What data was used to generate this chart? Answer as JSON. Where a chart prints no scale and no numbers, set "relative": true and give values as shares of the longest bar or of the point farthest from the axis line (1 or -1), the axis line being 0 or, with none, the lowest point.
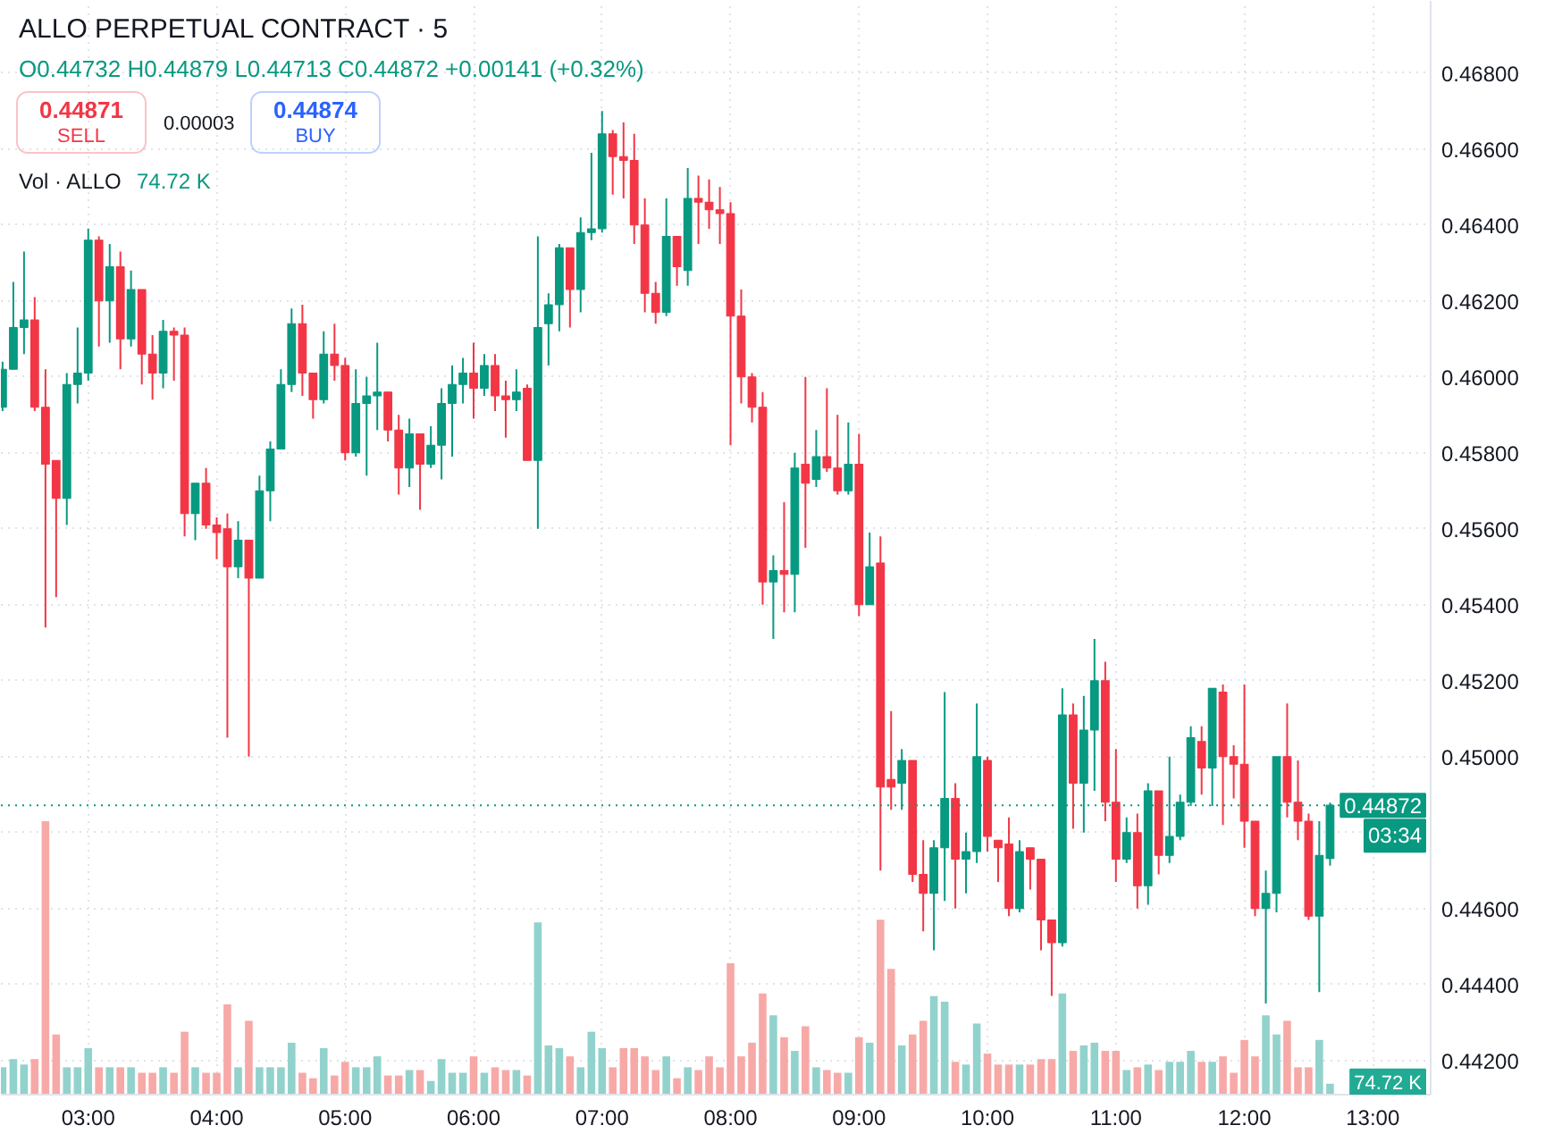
{
  "chart_data": [
    {
      "type": "candlestick",
      "title": "ALLO PERPETUAL CONTRACT · 5",
      "x": [
        2.333,
        2.417,
        2.5,
        2.583,
        2.667,
        2.75,
        2.833,
        2.917,
        3,
        3.083,
        3.167,
        3.25,
        3.333,
        3.417,
        3.5,
        3.583,
        3.667,
        3.75,
        3.833,
        3.917,
        4,
        4.083,
        4.167,
        4.25,
        4.333,
        4.417,
        4.5,
        4.583,
        4.667,
        4.75,
        4.833,
        4.917,
        5,
        5.083,
        5.167,
        5.25,
        5.333,
        5.417,
        5.5,
        5.583,
        5.667,
        5.75,
        5.833,
        5.917,
        6,
        6.083,
        6.167,
        6.25,
        6.333,
        6.417,
        6.5,
        6.583,
        6.667,
        6.75,
        6.833,
        6.917,
        7,
        7.083,
        7.167,
        7.25,
        7.333,
        7.417,
        7.5,
        7.583,
        7.667,
        7.75,
        7.833,
        7.917,
        8,
        8.083,
        8.167,
        8.25,
        8.333,
        8.417,
        8.5,
        8.583,
        8.667,
        8.75,
        8.833,
        8.917,
        9,
        9.083,
        9.167,
        9.25,
        9.333,
        9.417,
        9.5,
        9.583,
        9.667,
        9.75,
        9.833,
        9.917,
        10,
        10.083,
        10.167,
        10.25,
        10.333,
        10.417,
        10.5,
        10.583,
        10.667,
        10.75,
        10.833,
        10.917,
        11,
        11.083,
        11.167,
        11.25,
        11.333,
        11.417,
        11.5,
        11.583,
        11.667,
        11.75,
        11.833,
        11.917,
        12,
        12.083,
        12.167,
        12.25,
        12.333,
        12.417,
        12.5,
        12.583,
        12.667
      ],
      "ohlc": [
        [
          0.4592,
          0.4604,
          0.4591,
          0.4602
        ],
        [
          0.4602,
          0.4625,
          0.4602,
          0.4613
        ],
        [
          0.4613,
          0.4633,
          0.4606,
          0.4615
        ],
        [
          0.4615,
          0.4621,
          0.4591,
          0.4592
        ],
        [
          0.4592,
          0.4602,
          0.4534,
          0.4577
        ],
        [
          0.4578,
          0.4578,
          0.4542,
          0.4568
        ],
        [
          0.4568,
          0.4601,
          0.4561,
          0.4598
        ],
        [
          0.4598,
          0.4613,
          0.4593,
          0.4601
        ],
        [
          0.4601,
          0.4639,
          0.4599,
          0.4636
        ],
        [
          0.4636,
          0.4637,
          0.4608,
          0.462
        ],
        [
          0.462,
          0.4635,
          0.4609,
          0.4629
        ],
        [
          0.4629,
          0.4633,
          0.4602,
          0.461
        ],
        [
          0.461,
          0.4628,
          0.4608,
          0.4623
        ],
        [
          0.4623,
          0.4623,
          0.4598,
          0.4606
        ],
        [
          0.4606,
          0.4611,
          0.4594,
          0.4601
        ],
        [
          0.4601,
          0.4615,
          0.4597,
          0.4612
        ],
        [
          0.4612,
          0.4613,
          0.4599,
          0.4611
        ],
        [
          0.4611,
          0.4613,
          0.4558,
          0.4564
        ],
        [
          0.4564,
          0.4572,
          0.4557,
          0.4572
        ],
        [
          0.4572,
          0.4576,
          0.456,
          0.4561
        ],
        [
          0.4561,
          0.4563,
          0.4552,
          0.4559
        ],
        [
          0.456,
          0.4564,
          0.4505,
          0.455
        ],
        [
          0.455,
          0.4562,
          0.4547,
          0.4557
        ],
        [
          0.4557,
          0.4557,
          0.45,
          0.4547
        ],
        [
          0.4547,
          0.4574,
          0.4547,
          0.457
        ],
        [
          0.457,
          0.4583,
          0.4562,
          0.4581
        ],
        [
          0.4581,
          0.4602,
          0.4581,
          0.4598
        ],
        [
          0.4598,
          0.4618,
          0.4596,
          0.4614
        ],
        [
          0.4614,
          0.4619,
          0.4595,
          0.4601
        ],
        [
          0.4601,
          0.4601,
          0.4589,
          0.4594
        ],
        [
          0.4594,
          0.4612,
          0.4593,
          0.4606
        ],
        [
          0.4606,
          0.4614,
          0.4599,
          0.4603
        ],
        [
          0.4603,
          0.4605,
          0.4578,
          0.458
        ],
        [
          0.458,
          0.4602,
          0.4579,
          0.4593
        ],
        [
          0.4593,
          0.46,
          0.4574,
          0.4595
        ],
        [
          0.4595,
          0.4609,
          0.4586,
          0.4596
        ],
        [
          0.4596,
          0.4596,
          0.4583,
          0.4586
        ],
        [
          0.4586,
          0.459,
          0.4569,
          0.4576
        ],
        [
          0.4576,
          0.4589,
          0.4571,
          0.4585
        ],
        [
          0.4585,
          0.4585,
          0.4565,
          0.4577
        ],
        [
          0.4577,
          0.4587,
          0.4576,
          0.4582
        ],
        [
          0.4582,
          0.4597,
          0.4573,
          0.4593
        ],
        [
          0.4593,
          0.4603,
          0.4579,
          0.4598
        ],
        [
          0.4598,
          0.4605,
          0.4593,
          0.4601
        ],
        [
          0.4601,
          0.4609,
          0.4589,
          0.4597
        ],
        [
          0.4597,
          0.4606,
          0.4595,
          0.4603
        ],
        [
          0.4603,
          0.4606,
          0.4591,
          0.4595
        ],
        [
          0.4595,
          0.4599,
          0.4584,
          0.4594
        ],
        [
          0.4594,
          0.4602,
          0.4591,
          0.4596
        ],
        [
          0.4597,
          0.4598,
          0.4578,
          0.4578
        ],
        [
          0.4578,
          0.4637,
          0.456,
          0.4613
        ],
        [
          0.4614,
          0.4622,
          0.4603,
          0.4619
        ],
        [
          0.4619,
          0.4635,
          0.4612,
          0.4634
        ],
        [
          0.4634,
          0.4634,
          0.4613,
          0.4623
        ],
        [
          0.4623,
          0.4642,
          0.4617,
          0.4638
        ],
        [
          0.4638,
          0.4659,
          0.4636,
          0.4639
        ],
        [
          0.4639,
          0.467,
          0.4638,
          0.4664
        ],
        [
          0.4664,
          0.4665,
          0.4648,
          0.4658
        ],
        [
          0.4658,
          0.4667,
          0.4647,
          0.4657
        ],
        [
          0.4657,
          0.4664,
          0.4635,
          0.464
        ],
        [
          0.464,
          0.4647,
          0.4617,
          0.4622
        ],
        [
          0.4622,
          0.4625,
          0.4614,
          0.4617
        ],
        [
          0.4617,
          0.4647,
          0.4616,
          0.4637
        ],
        [
          0.4637,
          0.4637,
          0.4624,
          0.4629
        ],
        [
          0.4628,
          0.4655,
          0.4624,
          0.4647
        ],
        [
          0.4647,
          0.4653,
          0.4635,
          0.4646
        ],
        [
          0.4646,
          0.4652,
          0.4639,
          0.4644
        ],
        [
          0.4644,
          0.465,
          0.4635,
          0.4643
        ],
        [
          0.4643,
          0.4646,
          0.4582,
          0.4616
        ],
        [
          0.4616,
          0.4623,
          0.4593,
          0.46
        ],
        [
          0.46,
          0.4601,
          0.4588,
          0.4592
        ],
        [
          0.4592,
          0.4596,
          0.454,
          0.4546
        ],
        [
          0.4546,
          0.4553,
          0.4531,
          0.4549
        ],
        [
          0.4549,
          0.4567,
          0.4538,
          0.4548
        ],
        [
          0.4548,
          0.458,
          0.4538,
          0.4576
        ],
        [
          0.4577,
          0.46,
          0.4555,
          0.4572
        ],
        [
          0.4573,
          0.4586,
          0.4571,
          0.4579
        ],
        [
          0.4579,
          0.4597,
          0.4575,
          0.4576
        ],
        [
          0.4576,
          0.459,
          0.4569,
          0.457
        ],
        [
          0.457,
          0.4588,
          0.4569,
          0.4577
        ],
        [
          0.4577,
          0.4585,
          0.4537,
          0.454
        ],
        [
          0.454,
          0.4559,
          0.454,
          0.455
        ],
        [
          0.4551,
          0.4558,
          0.447,
          0.4492
        ],
        [
          0.4494,
          0.4512,
          0.4486,
          0.4492
        ],
        [
          0.4493,
          0.4502,
          0.4486,
          0.4499
        ],
        [
          0.4499,
          0.4499,
          0.4467,
          0.4469
        ],
        [
          0.4469,
          0.4478,
          0.4454,
          0.4464
        ],
        [
          0.4464,
          0.4478,
          0.4449,
          0.4476
        ],
        [
          0.4476,
          0.4517,
          0.4462,
          0.4489
        ],
        [
          0.4489,
          0.4493,
          0.446,
          0.4473
        ],
        [
          0.4473,
          0.448,
          0.4464,
          0.4475
        ],
        [
          0.4475,
          0.4514,
          0.4472,
          0.45
        ],
        [
          0.4499,
          0.45,
          0.4475,
          0.4479
        ],
        [
          0.4478,
          0.4478,
          0.4467,
          0.4476
        ],
        [
          0.4477,
          0.4484,
          0.4458,
          0.446
        ],
        [
          0.446,
          0.4478,
          0.4459,
          0.4475
        ],
        [
          0.4476,
          0.4476,
          0.4465,
          0.4473
        ],
        [
          0.4473,
          0.4473,
          0.4449,
          0.4457
        ],
        [
          0.4457,
          0.4457,
          0.4437,
          0.4451
        ],
        [
          0.4451,
          0.4518,
          0.445,
          0.4511
        ],
        [
          0.4511,
          0.4514,
          0.4481,
          0.4493
        ],
        [
          0.4493,
          0.4516,
          0.448,
          0.4507
        ],
        [
          0.4507,
          0.4531,
          0.4491,
          0.452
        ],
        [
          0.452,
          0.4525,
          0.4483,
          0.4488
        ],
        [
          0.4488,
          0.4502,
          0.4467,
          0.4473
        ],
        [
          0.4473,
          0.4484,
          0.4472,
          0.448
        ],
        [
          0.448,
          0.4485,
          0.446,
          0.4466
        ],
        [
          0.4466,
          0.4493,
          0.4461,
          0.4491
        ],
        [
          0.4491,
          0.4491,
          0.4469,
          0.4474
        ],
        [
          0.4474,
          0.45,
          0.4472,
          0.4479
        ],
        [
          0.4479,
          0.449,
          0.4478,
          0.4488
        ],
        [
          0.4488,
          0.4508,
          0.4487,
          0.4505
        ],
        [
          0.4504,
          0.4508,
          0.449,
          0.4497
        ],
        [
          0.4497,
          0.4518,
          0.4487,
          0.4518
        ],
        [
          0.4517,
          0.4519,
          0.4482,
          0.45
        ],
        [
          0.45,
          0.4503,
          0.4489,
          0.4498
        ],
        [
          0.4498,
          0.4519,
          0.4476,
          0.4483
        ],
        [
          0.4483,
          0.4483,
          0.4458,
          0.446
        ],
        [
          0.446,
          0.447,
          0.4435,
          0.4464
        ],
        [
          0.4464,
          0.45,
          0.4459,
          0.45
        ],
        [
          0.45,
          0.4514,
          0.4484,
          0.4488
        ],
        [
          0.4488,
          0.4499,
          0.4478,
          0.4483
        ],
        [
          0.4483,
          0.4485,
          0.4457,
          0.4458
        ],
        [
          0.4458,
          0.4483,
          0.4438,
          0.4474
        ],
        [
          0.44732,
          0.44879,
          0.44713,
          0.44872
        ]
      ],
      "colors": [
        "#089981",
        "#089981",
        "#089981",
        "#f23645",
        "#f23645",
        "#f23645",
        "#089981",
        "#089981",
        "#089981",
        "#f23645",
        "#089981",
        "#f23645",
        "#089981",
        "#f23645",
        "#f23645",
        "#089981",
        "#f23645",
        "#f23645",
        "#089981",
        "#f23645",
        "#f23645",
        "#f23645",
        "#089981",
        "#f23645",
        "#089981",
        "#089981",
        "#089981",
        "#089981",
        "#f23645",
        "#f23645",
        "#089981",
        "#f23645",
        "#f23645",
        "#089981",
        "#089981",
        "#089981",
        "#f23645",
        "#f23645",
        "#089981",
        "#f23645",
        "#089981",
        "#089981",
        "#089981",
        "#089981",
        "#f23645",
        "#089981",
        "#f23645",
        "#f23645",
        "#089981",
        "#f23645",
        "#089981",
        "#089981",
        "#089981",
        "#f23645",
        "#089981",
        "#089981",
        "#089981",
        "#f23645",
        "#f23645",
        "#f23645",
        "#f23645",
        "#f23645",
        "#089981",
        "#f23645",
        "#089981",
        "#f23645",
        "#f23645",
        "#f23645",
        "#f23645",
        "#f23645",
        "#f23645",
        "#f23645",
        "#089981",
        "#f23645",
        "#089981",
        "#f23645",
        "#089981",
        "#f23645",
        "#f23645",
        "#089981",
        "#f23645",
        "#089981",
        "#f23645",
        "#f23645",
        "#089981",
        "#f23645",
        "#f23645",
        "#089981",
        "#089981",
        "#f23645",
        "#089981",
        "#089981",
        "#f23645",
        "#f23645",
        "#f23645",
        "#089981",
        "#f23645",
        "#f23645",
        "#f23645",
        "#089981",
        "#f23645",
        "#089981",
        "#089981",
        "#f23645",
        "#f23645",
        "#089981",
        "#f23645",
        "#089981",
        "#f23645",
        "#089981",
        "#089981",
        "#089981",
        "#f23645",
        "#089981",
        "#f23645",
        "#f23645",
        "#f23645",
        "#f23645",
        "#089981",
        "#089981",
        "#f23645",
        "#f23645",
        "#f23645",
        "#089981",
        "#089981"
      ],
      "xlim": [
        2.32,
        13.45
      ],
      "xticks": [
        {
          "value": 3,
          "label": "03:00"
        },
        {
          "value": 4,
          "label": "04:00"
        },
        {
          "value": 5,
          "label": "05:00"
        },
        {
          "value": 6,
          "label": "06:00"
        },
        {
          "value": 7,
          "label": "07:00"
        },
        {
          "value": 8,
          "label": "08:00"
        },
        {
          "value": 9,
          "label": "09:00"
        },
        {
          "value": 10,
          "label": "10:00"
        },
        {
          "value": 11,
          "label": "11:00"
        },
        {
          "value": 12,
          "label": "12:00"
        },
        {
          "value": 13,
          "label": "13:00"
        }
      ],
      "ylim": [
        0.4411,
        0.4699
      ],
      "yticks": [
        {
          "value": 0.442,
          "label": "0.44200"
        },
        {
          "value": 0.444,
          "label": "0.44400"
        },
        {
          "value": 0.446,
          "label": "0.44600"
        },
        {
          "value": 0.448,
          "label": null
        },
        {
          "value": 0.45,
          "label": "0.45000"
        },
        {
          "value": 0.452,
          "label": "0.45200"
        },
        {
          "value": 0.454,
          "label": "0.45400"
        },
        {
          "value": 0.456,
          "label": "0.45600"
        },
        {
          "value": 0.458,
          "label": "0.45800"
        },
        {
          "value": 0.46,
          "label": "0.46000"
        },
        {
          "value": 0.462,
          "label": "0.46200"
        },
        {
          "value": 0.464,
          "label": "0.46400"
        },
        {
          "value": 0.466,
          "label": "0.46600"
        },
        {
          "value": 0.468,
          "label": "0.46800"
        }
      ],
      "grid": true,
      "ref_lines": [
        {
          "axis": "y",
          "value": 0.44872,
          "label": "0.44872",
          "color": "#089981",
          "line_style": "dotted"
        }
      ],
      "annotations": [
        "O0.44732 H0.44879 L0.44713 C0.44872 +0.00141 (+0.32%)",
        "0.44871",
        "SELL",
        "0.00003",
        "0.44874",
        "BUY",
        "03:34"
      ]
    },
    {
      "type": "bar",
      "title": "Vol · ALLO",
      "relative": true,
      "categories": [
        null,
        null,
        null,
        null,
        null,
        null,
        null,
        null,
        null,
        null,
        null,
        null,
        null,
        null,
        null,
        null,
        null,
        null,
        null,
        null,
        null,
        null,
        null,
        null,
        null,
        null,
        null,
        null,
        null,
        null,
        null,
        null,
        null,
        null,
        null,
        null,
        null,
        null,
        null,
        null,
        null,
        null,
        null,
        null,
        null,
        null,
        null,
        null,
        null,
        null,
        null,
        null,
        null,
        null,
        null,
        null,
        null,
        null,
        null,
        null,
        null,
        null,
        null,
        null,
        null,
        null,
        null,
        null,
        null,
        null,
        null,
        null,
        null,
        null,
        null,
        null,
        null,
        null,
        null,
        null,
        null,
        null,
        null,
        null,
        null,
        null,
        null,
        null,
        null,
        null,
        null,
        null,
        null,
        null,
        null,
        null,
        null,
        null,
        null,
        null,
        null,
        null,
        null,
        null,
        null,
        null,
        null,
        null,
        null,
        null,
        null,
        null,
        null,
        null,
        null,
        null,
        null,
        null,
        null,
        null,
        null,
        null,
        null,
        null,
        null
      ],
      "values": [
        0.1,
        0.13,
        0.11,
        0.13,
        1,
        0.22,
        0.1,
        0.1,
        0.17,
        0.1,
        0.1,
        0.1,
        0.1,
        0.08,
        0.08,
        0.1,
        0.08,
        0.23,
        0.1,
        0.08,
        0.08,
        0.33,
        0.1,
        0.27,
        0.1,
        0.1,
        0.1,
        0.19,
        0.08,
        0.06,
        0.17,
        0.07,
        0.12,
        0.1,
        0.1,
        0.14,
        0.07,
        0.07,
        0.09,
        0.09,
        0.05,
        0.13,
        0.08,
        0.08,
        0.14,
        0.08,
        0.1,
        0.09,
        0.09,
        0.07,
        0.63,
        0.18,
        0.17,
        0.14,
        0.1,
        0.23,
        0.17,
        0.1,
        0.17,
        0.17,
        0.14,
        0.09,
        0.14,
        0.06,
        0.1,
        0.09,
        0.14,
        0.1,
        0.48,
        0.14,
        0.19,
        0.37,
        0.29,
        0.21,
        0.16,
        0.25,
        0.1,
        0.09,
        0.08,
        0.08,
        0.21,
        0.19,
        0.64,
        0.46,
        0.18,
        0.22,
        0.27,
        0.36,
        0.34,
        0.12,
        0.11,
        0.26,
        0.15,
        0.11,
        0.11,
        0.11,
        0.11,
        0.13,
        0.13,
        0.37,
        0.16,
        0.18,
        0.19,
        0.16,
        0.16,
        0.09,
        0.1,
        0.11,
        0.09,
        0.12,
        0.12,
        0.16,
        0.12,
        0.12,
        0.14,
        0.08,
        0.2,
        0.14,
        0.29,
        0.22,
        0.27,
        0.1,
        0.1,
        0.2,
        0.04
      ],
      "colors": [
        "#92d2cc",
        "#92d2cc",
        "#92d2cc",
        "#f7a9a7",
        "#f7a9a7",
        "#f7a9a7",
        "#92d2cc",
        "#92d2cc",
        "#92d2cc",
        "#f7a9a7",
        "#92d2cc",
        "#f7a9a7",
        "#92d2cc",
        "#f7a9a7",
        "#f7a9a7",
        "#92d2cc",
        "#f7a9a7",
        "#f7a9a7",
        "#92d2cc",
        "#f7a9a7",
        "#f7a9a7",
        "#f7a9a7",
        "#92d2cc",
        "#f7a9a7",
        "#92d2cc",
        "#92d2cc",
        "#92d2cc",
        "#92d2cc",
        "#f7a9a7",
        "#f7a9a7",
        "#92d2cc",
        "#f7a9a7",
        "#f7a9a7",
        "#92d2cc",
        "#92d2cc",
        "#92d2cc",
        "#f7a9a7",
        "#f7a9a7",
        "#92d2cc",
        "#f7a9a7",
        "#92d2cc",
        "#92d2cc",
        "#92d2cc",
        "#92d2cc",
        "#f7a9a7",
        "#92d2cc",
        "#f7a9a7",
        "#f7a9a7",
        "#92d2cc",
        "#f7a9a7",
        "#92d2cc",
        "#92d2cc",
        "#92d2cc",
        "#f7a9a7",
        "#92d2cc",
        "#92d2cc",
        "#92d2cc",
        "#f7a9a7",
        "#f7a9a7",
        "#f7a9a7",
        "#f7a9a7",
        "#f7a9a7",
        "#92d2cc",
        "#f7a9a7",
        "#92d2cc",
        "#f7a9a7",
        "#f7a9a7",
        "#f7a9a7",
        "#f7a9a7",
        "#f7a9a7",
        "#f7a9a7",
        "#f7a9a7",
        "#92d2cc",
        "#f7a9a7",
        "#92d2cc",
        "#f7a9a7",
        "#92d2cc",
        "#f7a9a7",
        "#f7a9a7",
        "#92d2cc",
        "#f7a9a7",
        "#92d2cc",
        "#f7a9a7",
        "#f7a9a7",
        "#92d2cc",
        "#f7a9a7",
        "#f7a9a7",
        "#92d2cc",
        "#92d2cc",
        "#f7a9a7",
        "#92d2cc",
        "#92d2cc",
        "#f7a9a7",
        "#f7a9a7",
        "#f7a9a7",
        "#92d2cc",
        "#f7a9a7",
        "#f7a9a7",
        "#f7a9a7",
        "#92d2cc",
        "#f7a9a7",
        "#92d2cc",
        "#92d2cc",
        "#f7a9a7",
        "#f7a9a7",
        "#92d2cc",
        "#f7a9a7",
        "#92d2cc",
        "#f7a9a7",
        "#92d2cc",
        "#92d2cc",
        "#92d2cc",
        "#f7a9a7",
        "#92d2cc",
        "#f7a9a7",
        "#f7a9a7",
        "#f7a9a7",
        "#f7a9a7",
        "#92d2cc",
        "#92d2cc",
        "#f7a9a7",
        "#f7a9a7",
        "#f7a9a7",
        "#92d2cc",
        "#92d2cc"
      ],
      "annotations": [
        "74.72 K",
        "74.72 K"
      ]
    }
  ]
}
